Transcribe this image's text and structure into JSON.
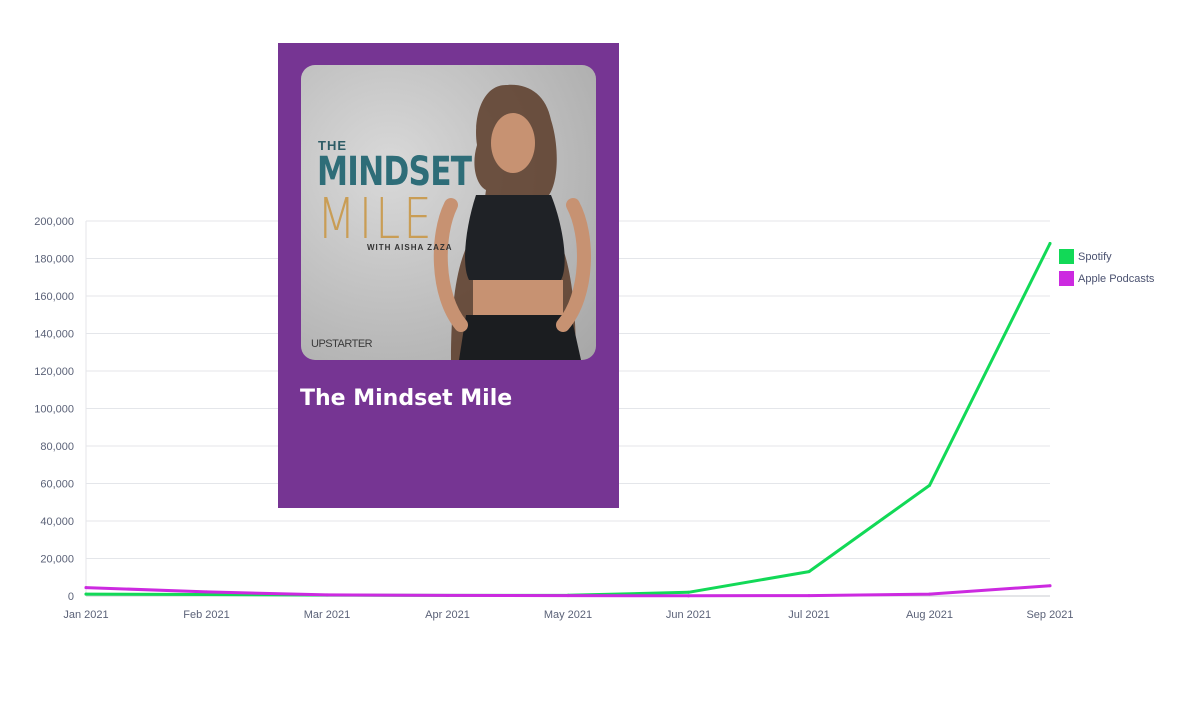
{
  "chart_data": {
    "type": "line",
    "categories": [
      "Jan 2021",
      "Feb 2021",
      "Mar 2021",
      "Apr 2021",
      "May 2021",
      "Jun 2021",
      "Jul 2021",
      "Aug 2021",
      "Sep 2021"
    ],
    "series": [
      {
        "name": "Spotify",
        "color": "#12d957",
        "values": [
          1000,
          800,
          500,
          300,
          400,
          2000,
          13000,
          59000,
          188000
        ]
      },
      {
        "name": "Apple Podcasts",
        "color": "#cc2ae0",
        "values": [
          4500,
          2200,
          600,
          300,
          200,
          100,
          200,
          1000,
          5500
        ]
      }
    ],
    "ylim": [
      0,
      200000
    ],
    "yticks": [
      "0",
      "20,000",
      "40,000",
      "60,000",
      "80,000",
      "100,000",
      "120,000",
      "140,000",
      "160,000",
      "180,000",
      "200,000"
    ],
    "grid": true,
    "legend_position": "right"
  },
  "podcast": {
    "art_the": "THE",
    "art_mindset": "MINDSET",
    "art_mile": "MILE",
    "art_with": "WITH AISHA ZAZA",
    "art_brand": "UPSTARTER",
    "title": "The Mindset Mile",
    "card_color": "#763593"
  }
}
